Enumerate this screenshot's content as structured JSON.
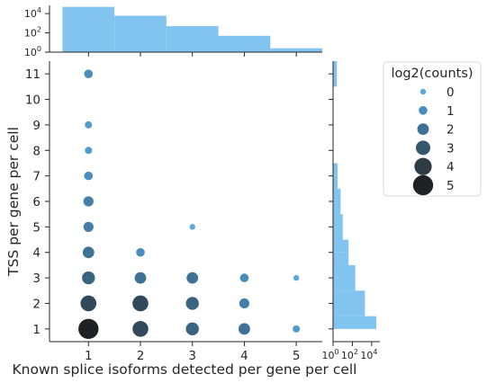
{
  "chart_data": {
    "type": "scatter",
    "xlabel": "Known splice isoforms detected per gene per cell",
    "ylabel": "TSS per gene per cell",
    "x_ticks": [
      1,
      2,
      3,
      4,
      5
    ],
    "y_ticks": [
      1,
      2,
      3,
      4,
      5,
      6,
      7,
      8,
      9,
      10,
      11
    ],
    "xlim": [
      0.25,
      5.5
    ],
    "ylim": [
      0.5,
      11.5
    ],
    "legend": {
      "title": "log2(counts)",
      "placement": "right",
      "entries": [
        "0",
        "1",
        "2",
        "3",
        "4",
        "5"
      ]
    },
    "points": [
      {
        "x": 1,
        "y": 1,
        "log2_count": 5
      },
      {
        "x": 1,
        "y": 2,
        "log2_count": 3.5
      },
      {
        "x": 1,
        "y": 3,
        "log2_count": 2.5
      },
      {
        "x": 1,
        "y": 4,
        "log2_count": 2
      },
      {
        "x": 1,
        "y": 5,
        "log2_count": 1.5
      },
      {
        "x": 1,
        "y": 6,
        "log2_count": 1.5
      },
      {
        "x": 1,
        "y": 7,
        "log2_count": 1
      },
      {
        "x": 1,
        "y": 8,
        "log2_count": 0.5
      },
      {
        "x": 1,
        "y": 9,
        "log2_count": 0.5
      },
      {
        "x": 1,
        "y": 11,
        "log2_count": 1
      },
      {
        "x": 2,
        "y": 1,
        "log2_count": 3.5
      },
      {
        "x": 2,
        "y": 2,
        "log2_count": 3.5
      },
      {
        "x": 2,
        "y": 3,
        "log2_count": 2
      },
      {
        "x": 2,
        "y": 4,
        "log2_count": 1
      },
      {
        "x": 3,
        "y": 1,
        "log2_count": 2.5
      },
      {
        "x": 3,
        "y": 2,
        "log2_count": 2.5
      },
      {
        "x": 3,
        "y": 3,
        "log2_count": 2
      },
      {
        "x": 3,
        "y": 5,
        "log2_count": 0
      },
      {
        "x": 4,
        "y": 1,
        "log2_count": 2
      },
      {
        "x": 4,
        "y": 2,
        "log2_count": 1.5
      },
      {
        "x": 4,
        "y": 3,
        "log2_count": 1
      },
      {
        "x": 5,
        "y": 1,
        "log2_count": 0.5
      },
      {
        "x": 5,
        "y": 3,
        "log2_count": 0
      }
    ],
    "top_histogram": {
      "scale": "log",
      "tick_labels": [
        "10^0",
        "10^2",
        "10^4"
      ],
      "bins": [
        {
          "x0": 0.5,
          "x1": 1.5,
          "count": 50000
        },
        {
          "x0": 1.5,
          "x1": 2.5,
          "count": 6000
        },
        {
          "x0": 2.5,
          "x1": 3.5,
          "count": 500
        },
        {
          "x0": 3.5,
          "x1": 4.5,
          "count": 50
        },
        {
          "x0": 4.5,
          "x1": 5.5,
          "count": 2.5
        }
      ]
    },
    "right_histogram": {
      "scale": "log",
      "tick_labels": [
        "10^0",
        "10^2",
        "10^4"
      ],
      "bins": [
        {
          "y0": 1.0,
          "y1": 1.5,
          "count": 30000
        },
        {
          "y0": 1.5,
          "y1": 2.0,
          "count": 2000
        },
        {
          "y0": 2.0,
          "y1": 2.5,
          "count": 2000
        },
        {
          "y0": 2.5,
          "y1": 3.0,
          "count": 200
        },
        {
          "y0": 3.0,
          "y1": 3.5,
          "count": 200
        },
        {
          "y0": 3.5,
          "y1": 4.0,
          "count": 40
        },
        {
          "y0": 4.0,
          "y1": 4.5,
          "count": 40
        },
        {
          "y0": 4.5,
          "y1": 5.0,
          "count": 10
        },
        {
          "y0": 5.0,
          "y1": 5.5,
          "count": 10
        },
        {
          "y0": 5.5,
          "y1": 6.0,
          "count": 6
        },
        {
          "y0": 6.0,
          "y1": 6.5,
          "count": 6
        },
        {
          "y0": 6.5,
          "y1": 7.0,
          "count": 3
        },
        {
          "y0": 7.0,
          "y1": 7.5,
          "count": 3
        },
        {
          "y0": 10.5,
          "y1": 11.0,
          "count": 2.5
        },
        {
          "y0": 11.0,
          "y1": 11.5,
          "count": 2.5
        }
      ]
    },
    "colors": {
      "hist_fill": "#80c4ef",
      "legend_0": "#5aa9dc",
      "legend_1": "#4a8cbb",
      "legend_2": "#3f7194",
      "legend_3": "#35566c",
      "legend_4": "#2d3c47",
      "legend_5": "#202124"
    },
    "grid": false
  }
}
